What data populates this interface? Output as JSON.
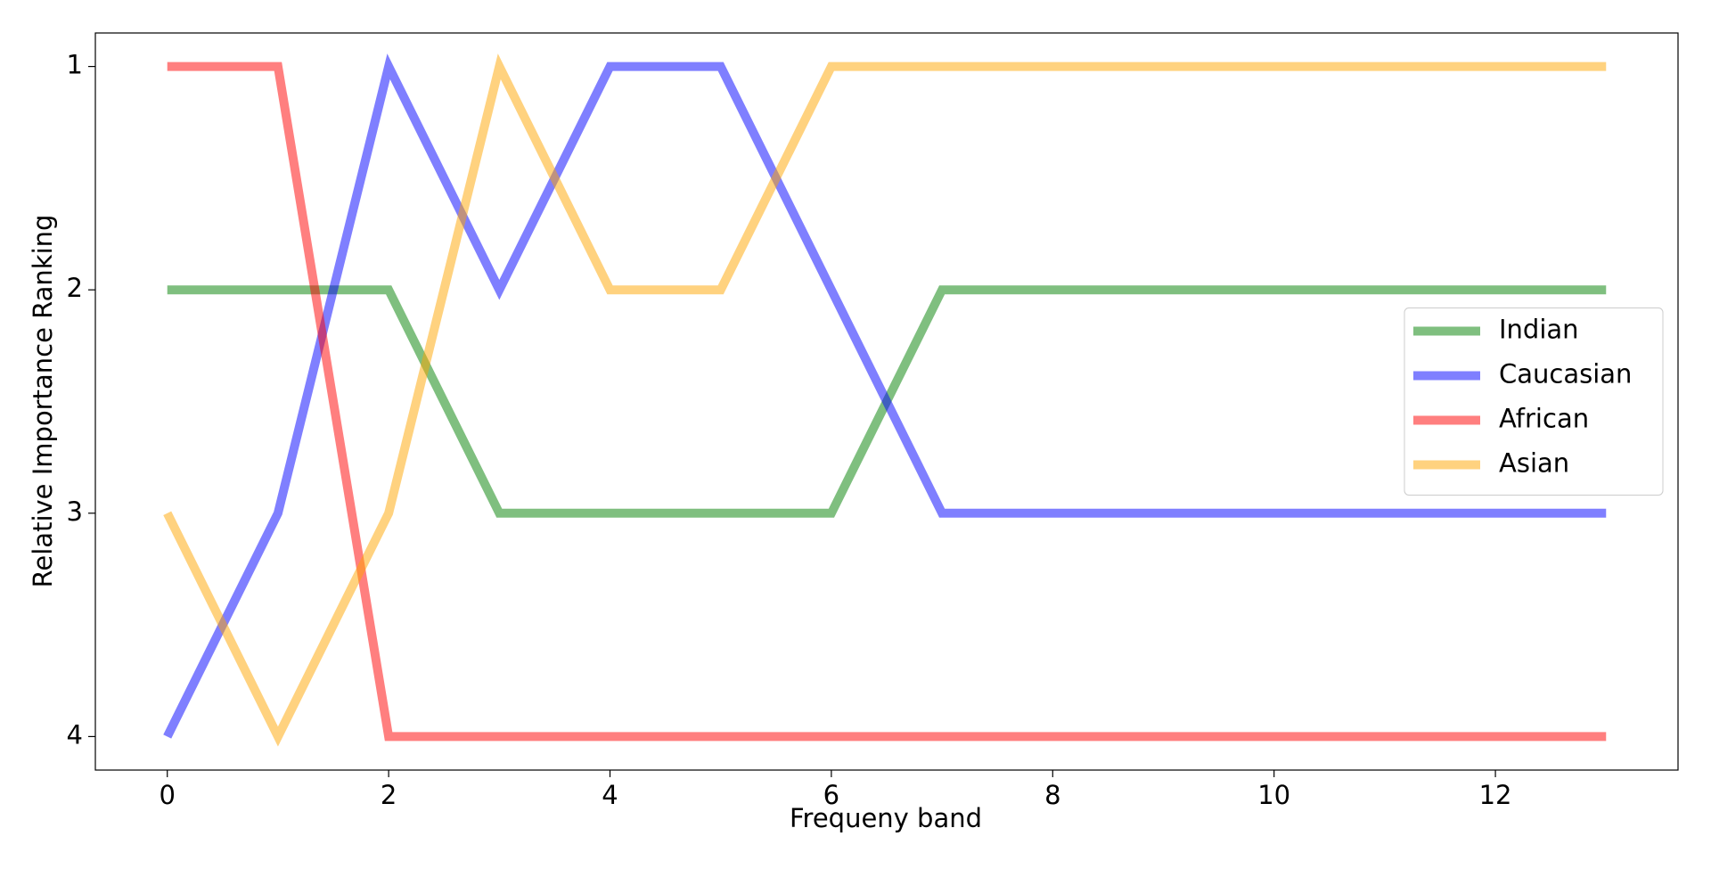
{
  "chart_data": {
    "type": "line",
    "x_label": "Frequeny band",
    "y_label": "Relative Importance Ranking",
    "x": [
      0,
      1,
      2,
      3,
      4,
      5,
      6,
      7,
      8,
      9,
      10,
      11,
      12,
      13
    ],
    "series": [
      {
        "name": "Indian",
        "color": "green",
        "values": [
          2,
          2,
          2,
          3,
          3,
          3,
          3,
          2,
          2,
          2,
          2,
          2,
          2,
          2
        ]
      },
      {
        "name": "Caucasian",
        "color": "blue",
        "values": [
          4,
          3,
          1,
          2,
          1,
          1,
          2,
          3,
          3,
          3,
          3,
          3,
          3,
          3
        ]
      },
      {
        "name": "African",
        "color": "red",
        "values": [
          1,
          1,
          4,
          4,
          4,
          4,
          4,
          4,
          4,
          4,
          4,
          4,
          4,
          4
        ]
      },
      {
        "name": "Asian",
        "color": "orange",
        "values": [
          3,
          4,
          3,
          1,
          2,
          2,
          1,
          1,
          1,
          1,
          1,
          1,
          1,
          1
        ]
      }
    ],
    "xlim": [
      -0.65,
      13.65
    ],
    "xticks": [
      0,
      2,
      4,
      6,
      8,
      10,
      12
    ],
    "ylim": [
      0.85,
      4.15
    ],
    "y_inverted": true,
    "yticks": [
      1,
      2,
      3,
      4
    ],
    "grid": false,
    "legend": "center right"
  }
}
